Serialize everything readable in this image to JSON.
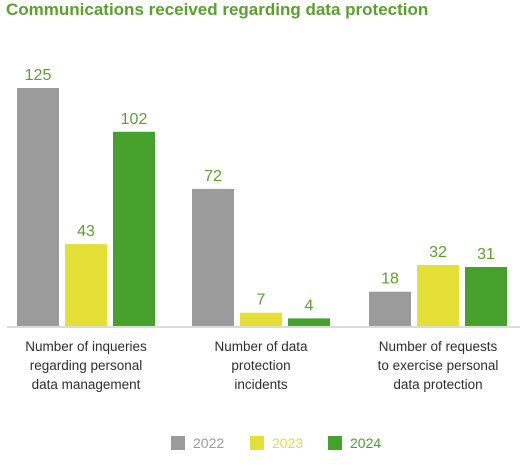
{
  "chart_data": {
    "type": "bar",
    "title": "Communications received regarding data protection",
    "categories": [
      [
        "Number of inqueries",
        "regarding personal",
        "data management"
      ],
      [
        "Number of data",
        "protection",
        "incidents"
      ],
      [
        "Number of requests",
        "to exercise personal",
        "data protection"
      ]
    ],
    "series": [
      {
        "name": "2022",
        "values": [
          125,
          72,
          18
        ],
        "color": "#9b9b9b",
        "label_color": "#5aa02c"
      },
      {
        "name": "2023",
        "values": [
          43,
          7,
          32
        ],
        "color": "#e3df35",
        "label_color": "#5aa02c"
      },
      {
        "name": "2024",
        "values": [
          102,
          4,
          31
        ],
        "color": "#45a12c",
        "label_color": "#5aa02c"
      }
    ],
    "legend_text_colors": [
      "#9b9b9b",
      "#e3df35",
      "#45a12c"
    ],
    "ylim": [
      0,
      125
    ],
    "legend": "bottom",
    "grid": false
  }
}
